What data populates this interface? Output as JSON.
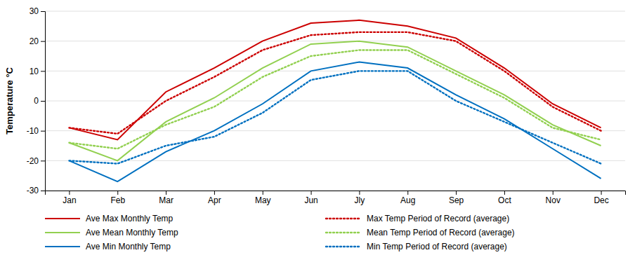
{
  "chart_data": {
    "type": "line",
    "y_label": "Temperature °C",
    "categories": [
      "Jan",
      "Feb",
      "Mar",
      "Apr",
      "May",
      "Jun",
      "Jly",
      "Aug",
      "Sep",
      "Oct",
      "Nov",
      "Dec"
    ],
    "series": [
      {
        "name": "Ave Max Monthly Temp",
        "color": "#cc0000",
        "line_style": "solid",
        "values": [
          -9,
          -13,
          3,
          11,
          20,
          26,
          27,
          25,
          21,
          11,
          -1,
          -9
        ]
      },
      {
        "name": "Ave Mean Monthly Temp",
        "color": "#92d050",
        "line_style": "solid",
        "values": [
          -14,
          -20,
          -7,
          1,
          11,
          19,
          20,
          18,
          10,
          2,
          -8,
          -15
        ]
      },
      {
        "name": "Ave Min Monthly Temp",
        "color": "#0070c0",
        "line_style": "solid",
        "values": [
          -20,
          -27,
          -17,
          -10,
          -1,
          10,
          13,
          11,
          2,
          -6,
          -16,
          -26
        ]
      },
      {
        "name": "Max Temp Period of Record (average)",
        "color": "#cc0000",
        "line_style": "dotted",
        "values": [
          -9,
          -11,
          0,
          8,
          17,
          22,
          23,
          23,
          20,
          10,
          -2,
          -10
        ]
      },
      {
        "name": "Mean Temp Period of Record (average)",
        "color": "#92d050",
        "line_style": "dotted",
        "values": [
          -14,
          -16,
          -8,
          -2,
          8,
          15,
          17,
          17,
          9,
          1,
          -9,
          -13
        ]
      },
      {
        "name": "Min Temp Period of Record (average)",
        "color": "#0070c0",
        "line_style": "dotted",
        "values": [
          -20,
          -21,
          -15,
          -12,
          -4,
          7,
          10,
          10,
          0,
          -7,
          -14,
          -21
        ]
      }
    ],
    "ylim": [
      -30,
      30
    ],
    "yticks": [
      -30,
      -20,
      -10,
      0,
      10,
      20,
      30
    ],
    "grid": true,
    "legend": "bottom"
  }
}
